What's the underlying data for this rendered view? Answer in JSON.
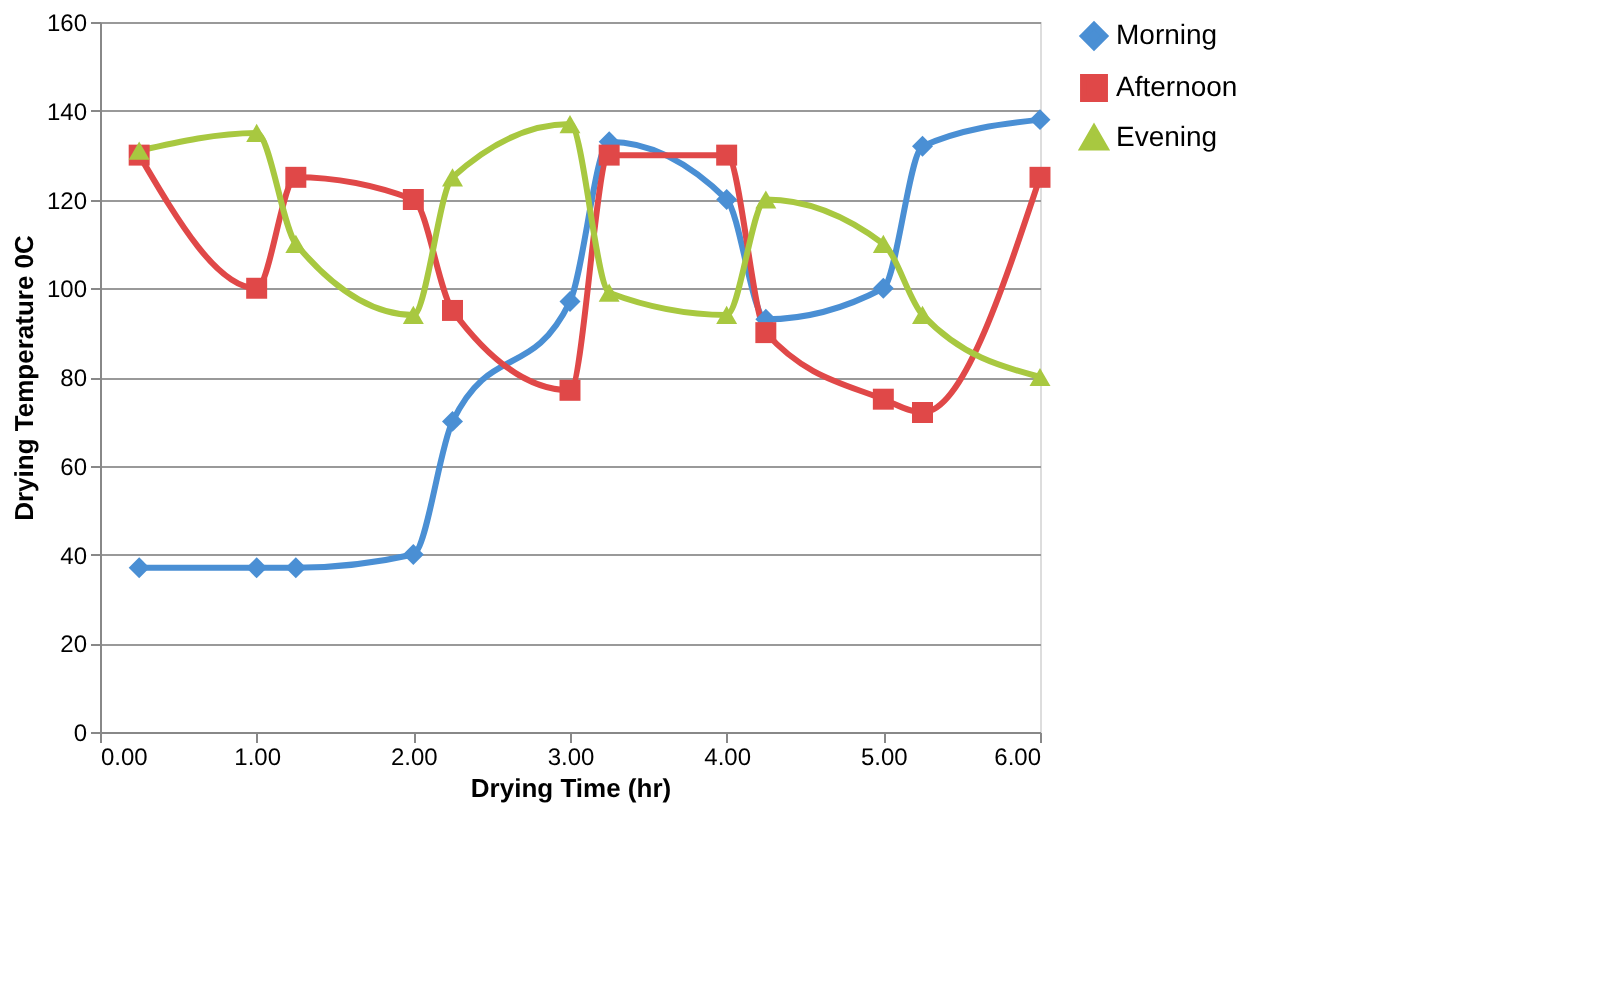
{
  "chart_data": {
    "type": "line",
    "xlabel": "Drying Time (hr)",
    "ylabel": "Drying Temperature 0C",
    "x": [
      0.25,
      1,
      1.25,
      2,
      2.25,
      3,
      3.25,
      4,
      4.25,
      5,
      5.25,
      6
    ],
    "series": [
      {
        "name": "Morning",
        "color": "#4a8fd4",
        "marker": "diamond",
        "values": [
          37,
          37,
          37,
          40,
          70,
          97,
          133,
          120,
          93,
          100,
          132,
          138
        ]
      },
      {
        "name": "Afternoon",
        "color": "#e04848",
        "marker": "square",
        "values": [
          130,
          100,
          125,
          120,
          95,
          77,
          130,
          130,
          90,
          75,
          72,
          125
        ]
      },
      {
        "name": "Evening",
        "color": "#a8c840",
        "marker": "triangle",
        "values": [
          131,
          135,
          110,
          94,
          125,
          137,
          99,
          94,
          120,
          110,
          94,
          80
        ]
      }
    ],
    "xlim": [
      0,
      6
    ],
    "xticks": [
      {
        "value": 0,
        "label": "0.00"
      },
      {
        "value": 1,
        "label": "1.00"
      },
      {
        "value": 2,
        "label": "2.00"
      },
      {
        "value": 3,
        "label": "3.00"
      },
      {
        "value": 4,
        "label": "4.00"
      },
      {
        "value": 5,
        "label": "5.00"
      },
      {
        "value": 6,
        "label": "6.00"
      }
    ],
    "ylim": [
      0,
      160
    ],
    "yticks": [
      0,
      20,
      40,
      60,
      80,
      100,
      120,
      140,
      160
    ],
    "grid": "y",
    "legend": "right",
    "line_style": "solid"
  }
}
